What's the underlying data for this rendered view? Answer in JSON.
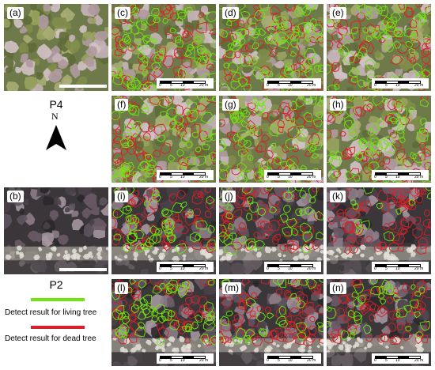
{
  "colors": {
    "living": "#6ee60a",
    "dead": "#d8202a",
    "healthy_forest": "#7f8a52",
    "dark_forest": "#2c2b2d"
  },
  "plots": {
    "p4": {
      "name": "P4"
    },
    "p2": {
      "name": "P2"
    }
  },
  "north": {
    "label": "N",
    "icon": "north-arrow-icon"
  },
  "legend": {
    "living": {
      "label": "Detect result for living tree"
    },
    "dead": {
      "label": "Detect result for dead tree"
    }
  },
  "panels": [
    {
      "id": "a",
      "label": "(a)"
    },
    {
      "id": "b",
      "label": "(b)"
    },
    {
      "id": "c",
      "label": "(c)"
    },
    {
      "id": "d",
      "label": "(d)"
    },
    {
      "id": "e",
      "label": "(e)"
    },
    {
      "id": "f",
      "label": "(f)"
    },
    {
      "id": "g",
      "label": "(g)"
    },
    {
      "id": "h",
      "label": "(h)"
    },
    {
      "id": "i",
      "label": "(i)"
    },
    {
      "id": "j",
      "label": "(j)"
    },
    {
      "id": "k",
      "label": "(k)"
    },
    {
      "id": "l",
      "label": "(l)"
    },
    {
      "id": "m",
      "label": "(m)"
    },
    {
      "id": "n",
      "label": "(n)"
    }
  ],
  "scalebar": {
    "ticks": [
      "0",
      "5",
      "10",
      "20 m"
    ]
  }
}
